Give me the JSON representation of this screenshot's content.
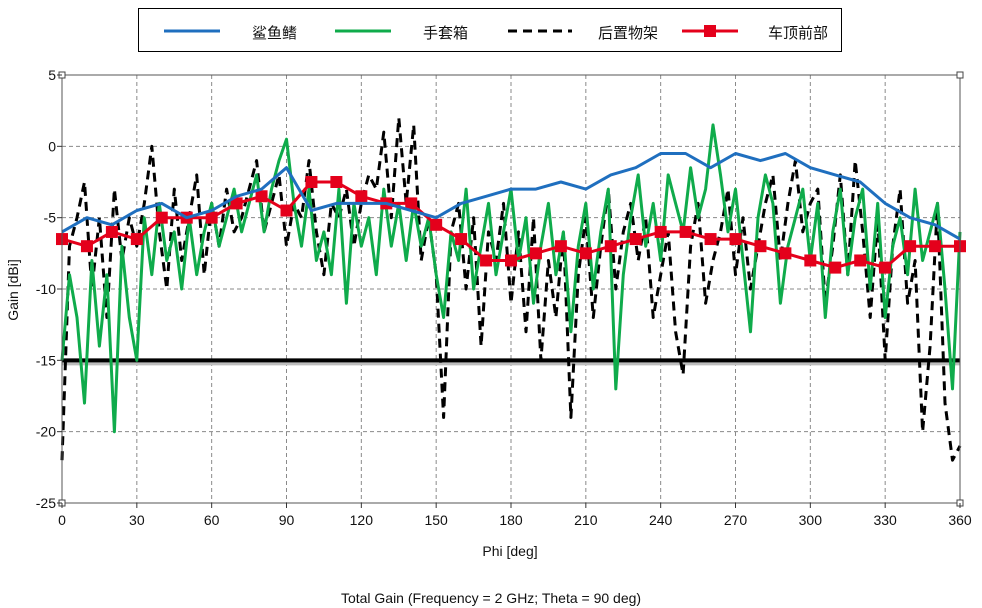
{
  "chart_data": {
    "type": "line",
    "title": "Total Gain (Frequency = 2 GHz; Theta = 90 deg)",
    "xlabel": "Phi [deg]",
    "ylabel": "Gain [dBi]",
    "xlim": [
      0,
      360
    ],
    "ylim": [
      -25,
      5
    ],
    "xticks": [
      0,
      30,
      60,
      90,
      120,
      150,
      180,
      210,
      240,
      270,
      300,
      330,
      360
    ],
    "yticks": [
      5,
      0,
      -5,
      -10,
      -15,
      -20,
      -25
    ],
    "grid": true,
    "legend_position": "top-center",
    "reference_line": {
      "y": -15,
      "color": "#000000"
    },
    "series": [
      {
        "name": "鲨鱼鳍",
        "color": "#1f6fbf",
        "style": "solid",
        "x": [
          0,
          10,
          20,
          30,
          40,
          50,
          60,
          70,
          80,
          90,
          100,
          110,
          120,
          130,
          140,
          150,
          160,
          170,
          180,
          190,
          200,
          210,
          220,
          230,
          240,
          250,
          260,
          270,
          280,
          290,
          300,
          310,
          320,
          330,
          340,
          350,
          360
        ],
        "values": [
          -6,
          -5,
          -5.5,
          -4.5,
          -4,
          -5,
          -4.5,
          -3.5,
          -3,
          -1.5,
          -4.5,
          -4,
          -4,
          -4,
          -4.5,
          -5,
          -4,
          -3.5,
          -3,
          -3,
          -2.5,
          -3,
          -2,
          -1.5,
          -0.5,
          -0.5,
          -1.5,
          -0.5,
          -1,
          -0.5,
          -1.5,
          -2,
          -2.5,
          -4,
          -5,
          -5.5,
          -6.5
        ]
      },
      {
        "name": "手套箱",
        "color": "#0fab4b",
        "style": "solid",
        "x": [
          0,
          3,
          6,
          9,
          12,
          15,
          18,
          21,
          24,
          27,
          30,
          33,
          36,
          39,
          42,
          45,
          48,
          51,
          54,
          57,
          60,
          63,
          66,
          69,
          72,
          75,
          78,
          81,
          84,
          87,
          90,
          93,
          96,
          99,
          102,
          105,
          108,
          111,
          114,
          117,
          120,
          123,
          126,
          129,
          132,
          135,
          138,
          141,
          144,
          147,
          150,
          153,
          156,
          159,
          162,
          165,
          168,
          171,
          174,
          177,
          180,
          183,
          186,
          189,
          192,
          195,
          198,
          201,
          204,
          207,
          210,
          213,
          216,
          219,
          222,
          225,
          228,
          231,
          234,
          237,
          240,
          243,
          246,
          249,
          252,
          255,
          258,
          261,
          264,
          267,
          270,
          273,
          276,
          279,
          282,
          285,
          288,
          291,
          294,
          297,
          300,
          303,
          306,
          309,
          312,
          315,
          318,
          321,
          324,
          327,
          330,
          333,
          336,
          339,
          342,
          345,
          348,
          351,
          354,
          357,
          360
        ],
        "values": [
          -15,
          -9,
          -12,
          -18,
          -8,
          -14,
          -9,
          -20,
          -7,
          -12,
          -15,
          -5,
          -9,
          -4,
          -8,
          -6,
          -10,
          -5,
          -9,
          -6,
          -4,
          -7,
          -5,
          -3,
          -6,
          -4,
          -2,
          -6,
          -3,
          -1,
          0.5,
          -4,
          -7,
          -3,
          -8,
          -6,
          -9,
          -3,
          -11,
          -4,
          -7,
          -5,
          -9,
          -3,
          -7,
          -4,
          -8,
          -4,
          -7,
          -5,
          -9,
          -12,
          -6,
          -8,
          -3,
          -10,
          -7,
          -4,
          -9,
          -6,
          -3,
          -8,
          -5,
          -11,
          -7,
          -4,
          -9,
          -6,
          -13,
          -7,
          -4,
          -10,
          -6,
          -3,
          -17,
          -9,
          -5,
          -2,
          -7,
          -4,
          -8,
          -2,
          -4,
          -6,
          -1.5,
          -5,
          -3,
          1.5,
          -2,
          -6,
          -3,
          -8,
          -13,
          -5,
          -2,
          -4,
          -11,
          -7,
          -5,
          -3,
          -8,
          -4,
          -12,
          -6,
          -3,
          -9,
          -5,
          -3,
          -10,
          -4,
          -12,
          -7,
          -5,
          -9,
          -3,
          -8,
          -6,
          -4,
          -10,
          -17,
          -6
        ]
      },
      {
        "name": "后置物架",
        "color": "#000000",
        "style": "dashed",
        "x": [
          0,
          3,
          6,
          9,
          12,
          15,
          18,
          21,
          24,
          27,
          30,
          33,
          36,
          39,
          42,
          45,
          48,
          51,
          54,
          57,
          60,
          63,
          66,
          69,
          72,
          75,
          78,
          81,
          84,
          87,
          90,
          93,
          96,
          99,
          102,
          105,
          108,
          111,
          114,
          117,
          120,
          123,
          126,
          129,
          132,
          135,
          138,
          141,
          144,
          147,
          150,
          153,
          156,
          159,
          162,
          165,
          168,
          171,
          174,
          177,
          180,
          183,
          186,
          189,
          192,
          195,
          198,
          201,
          204,
          207,
          210,
          213,
          216,
          219,
          222,
          225,
          228,
          231,
          234,
          237,
          240,
          243,
          246,
          249,
          252,
          255,
          258,
          261,
          264,
          267,
          270,
          273,
          276,
          279,
          282,
          285,
          288,
          291,
          294,
          297,
          300,
          303,
          306,
          309,
          312,
          315,
          318,
          321,
          324,
          327,
          330,
          333,
          336,
          339,
          342,
          345,
          348,
          351,
          354,
          357,
          360
        ],
        "values": [
          -22,
          -7,
          -5,
          -2.5,
          -10,
          -5,
          -12,
          -3,
          -8,
          -5,
          -7,
          -4,
          0,
          -6,
          -10,
          -3,
          -8,
          -5,
          -2,
          -9,
          -4,
          -7,
          -3,
          -6,
          -5,
          -3,
          -1,
          -6,
          -4,
          -2,
          -7,
          -4,
          -5,
          -1,
          -6,
          -9,
          -4,
          -5,
          -3,
          -7,
          -4,
          -2,
          -3,
          1,
          -5,
          2,
          -4,
          1.5,
          -8,
          -5,
          -9,
          -19,
          -6,
          -4,
          -10,
          -5,
          -14,
          -6,
          -8,
          -4,
          -11,
          -6,
          -13,
          -5,
          -15,
          -8,
          -12,
          -6,
          -19,
          -9,
          -5,
          -12,
          -7,
          -3,
          -10,
          -6,
          -4,
          -8,
          -5,
          -12,
          -9,
          -6,
          -13,
          -16,
          -7,
          -4,
          -11,
          -8,
          -6,
          -3,
          -9,
          -5,
          -10,
          -7,
          -4,
          -2,
          -8,
          -4,
          -1,
          -6,
          -4,
          -3,
          -11,
          -7,
          -2,
          -9,
          -1,
          -6,
          -12,
          -5,
          -15,
          -7,
          -3,
          -11,
          -8,
          -20,
          -14,
          -4,
          -18,
          -22,
          -21
        ]
      },
      {
        "name": "车顶前部",
        "color": "#e4001b",
        "style": "solid-square-markers",
        "x": [
          0,
          10,
          20,
          30,
          40,
          50,
          60,
          70,
          80,
          90,
          100,
          110,
          120,
          130,
          140,
          150,
          160,
          170,
          180,
          190,
          200,
          210,
          220,
          230,
          240,
          250,
          260,
          270,
          280,
          290,
          300,
          310,
          320,
          330,
          340,
          350,
          360
        ],
        "values": [
          -6.5,
          -7,
          -6,
          -6.5,
          -5,
          -5,
          -5,
          -4,
          -3.5,
          -4.5,
          -2.5,
          -2.5,
          -3.5,
          -4,
          -4,
          -5.5,
          -6.5,
          -8,
          -8,
          -7.5,
          -7,
          -7.5,
          -7,
          -6.5,
          -6,
          -6,
          -6.5,
          -6.5,
          -7,
          -7.5,
          -8,
          -8.5,
          -8,
          -8.5,
          -7,
          -7,
          -7
        ]
      }
    ]
  }
}
